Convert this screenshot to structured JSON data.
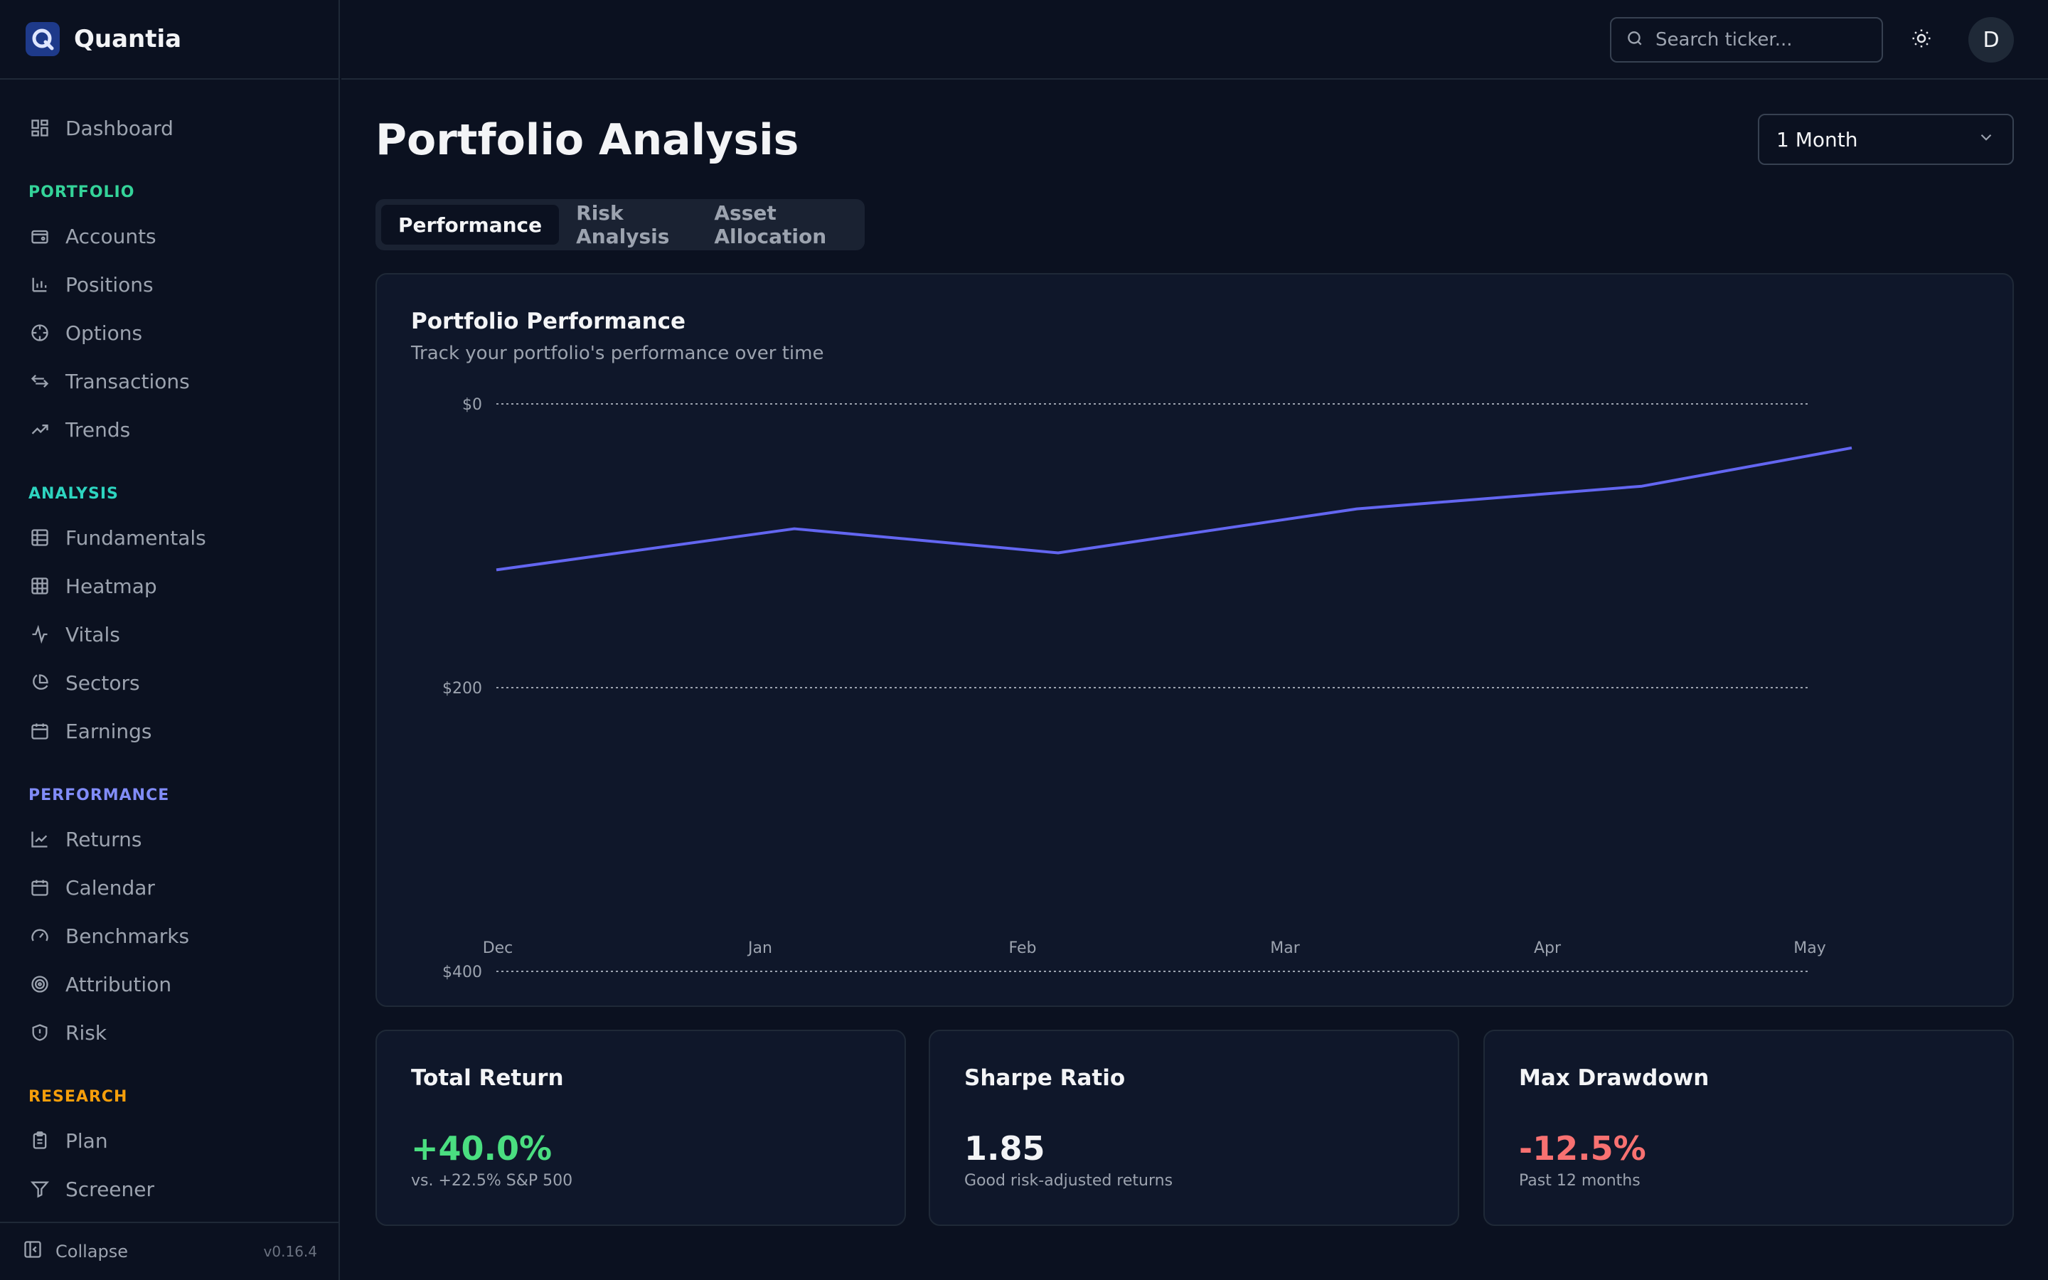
{
  "brand": {
    "name": "Quantia"
  },
  "sidebar": {
    "dashboard": "Dashboard",
    "sections": {
      "portfolio": {
        "label": "PORTFOLIO",
        "color": "#34d399",
        "items": [
          "Accounts",
          "Positions",
          "Options",
          "Transactions",
          "Trends"
        ]
      },
      "analysis": {
        "label": "ANALYSIS",
        "color": "#2dd4bf",
        "items": [
          "Fundamentals",
          "Heatmap",
          "Vitals",
          "Sectors",
          "Earnings"
        ]
      },
      "performance": {
        "label": "PERFORMANCE",
        "color": "#818cf8",
        "items": [
          "Returns",
          "Calendar",
          "Benchmarks",
          "Attribution",
          "Risk"
        ]
      },
      "research": {
        "label": "RESEARCH",
        "color": "#f59e0b",
        "items": [
          "Plan",
          "Screener"
        ]
      }
    },
    "collapse": "Collapse",
    "version": "v0.16.4"
  },
  "topbar": {
    "search_placeholder": "Search ticker...",
    "avatar_initial": "D"
  },
  "main": {
    "title": "Portfolio Analysis",
    "period": "1 Month",
    "tabs": [
      "Performance",
      "Risk Analysis",
      "Asset Allocation"
    ],
    "active_tab": "Performance"
  },
  "performance_card": {
    "title": "Portfolio Performance",
    "subtitle": "Track your portfolio's performance over time"
  },
  "chart_data": {
    "type": "line",
    "title": "Portfolio Performance",
    "x": [
      "Dec",
      "Jan",
      "Feb",
      "Mar",
      "Apr",
      "May"
    ],
    "y_ticks": [
      "$0",
      "$200",
      "$400"
    ],
    "y_axis_direction": "inverted (values increase downward)",
    "ylim": [
      0,
      400
    ],
    "series": [
      {
        "values": [
          117,
          88,
          105,
          74,
          58,
          31
        ],
        "color": "#6366f1"
      }
    ],
    "grid": "horizontal dotted",
    "legend": "none"
  },
  "stats": [
    {
      "title": "Total Return",
      "value": "+40.0%",
      "note": "vs. +22.5% S&P 500",
      "color": "#4ade80"
    },
    {
      "title": "Sharpe Ratio",
      "value": "1.85",
      "note": "Good risk-adjusted returns",
      "color": "#f3f4f6"
    },
    {
      "title": "Max Drawdown",
      "value": "-12.5%",
      "note": "Past 12 months",
      "color": "#f87171"
    }
  ]
}
